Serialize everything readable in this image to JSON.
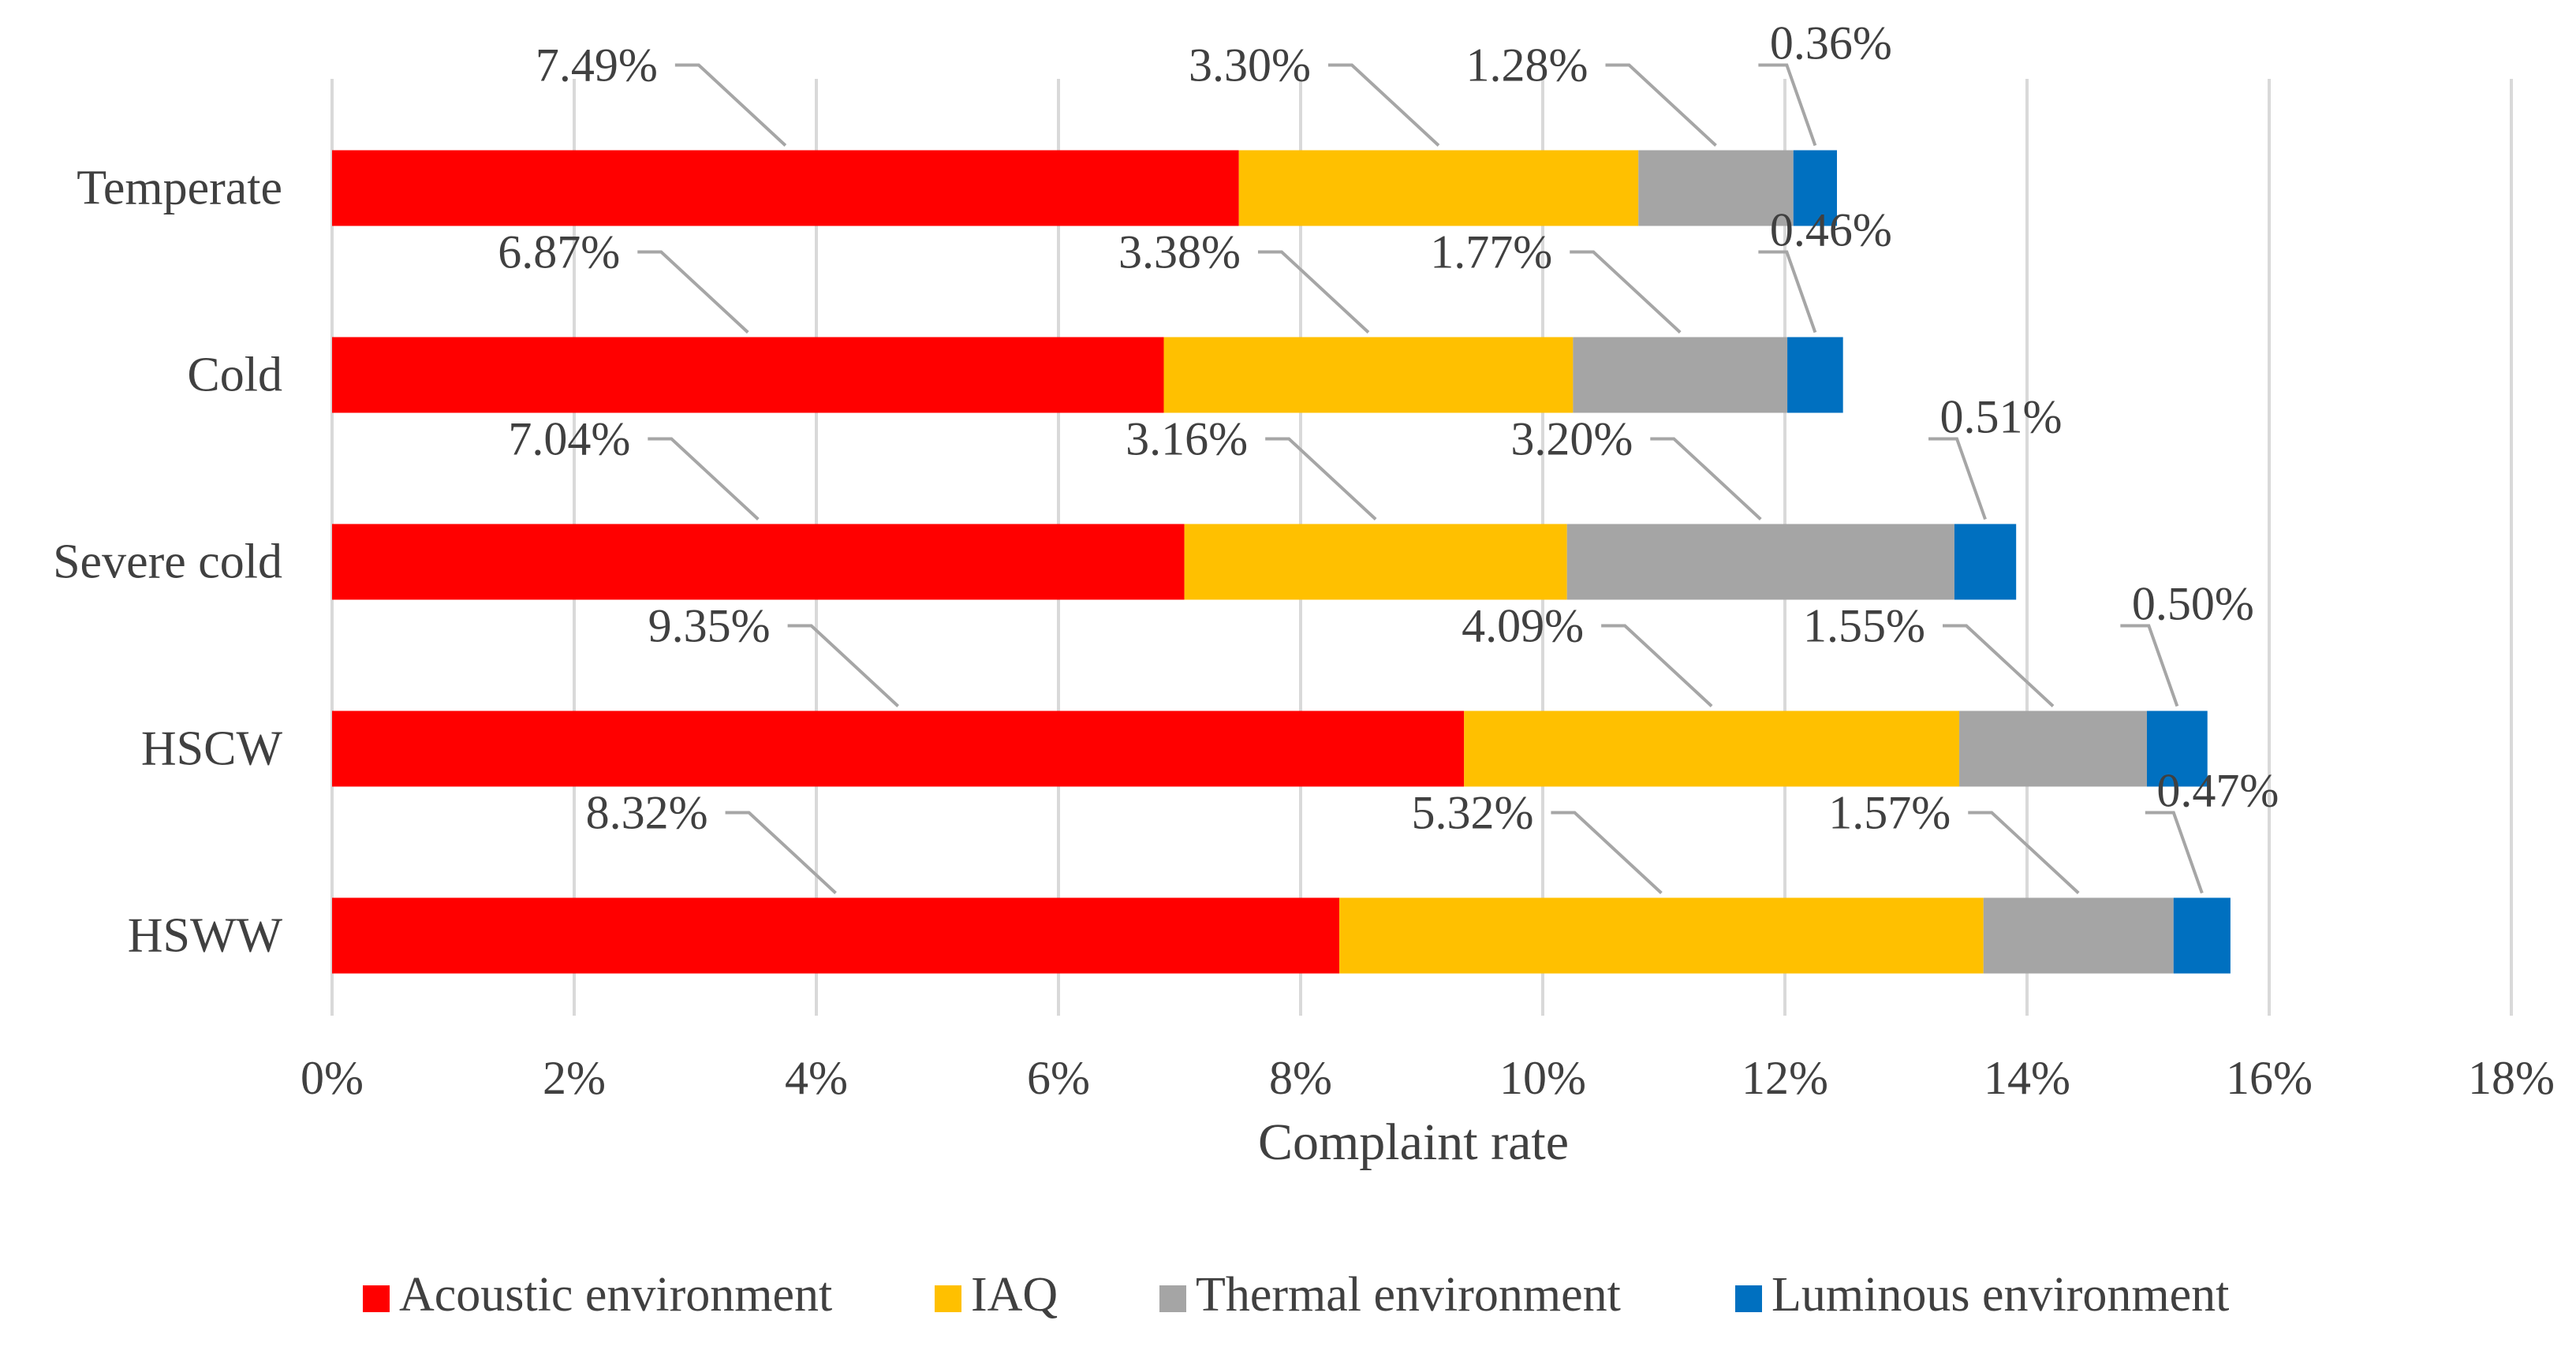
{
  "chart_data": {
    "type": "bar",
    "orientation": "horizontal",
    "stacked": true,
    "categories": [
      "Temperate",
      "Cold",
      "Severe cold",
      "HSCW",
      "HSWW"
    ],
    "series": [
      {
        "name": "Acoustic environment",
        "color": "#ff0000",
        "values": [
          7.49,
          6.87,
          7.04,
          9.35,
          8.32
        ],
        "labels": [
          "7.49%",
          "6.87%",
          "7.04%",
          "9.35%",
          "8.32%"
        ]
      },
      {
        "name": "IAQ",
        "color": "#ffc000",
        "values": [
          3.3,
          3.38,
          3.16,
          4.09,
          5.32
        ],
        "labels": [
          "3.30%",
          "3.38%",
          "3.16%",
          "4.09%",
          "5.32%"
        ]
      },
      {
        "name": "Thermal environment",
        "color": "#a5a5a5",
        "values": [
          1.28,
          1.77,
          3.2,
          1.55,
          1.57
        ],
        "labels": [
          "1.28%",
          "1.77%",
          "3.20%",
          "1.55%",
          "1.57%"
        ]
      },
      {
        "name": "Luminous environment",
        "color": "#0070c0",
        "values": [
          0.36,
          0.46,
          0.51,
          0.5,
          0.47
        ],
        "labels": [
          "0.36%",
          "0.46%",
          "0.51%",
          "0.50%",
          "0.47%"
        ]
      }
    ],
    "xlim": [
      0,
      18
    ],
    "xticks": [
      0,
      2,
      4,
      6,
      8,
      10,
      12,
      14,
      16,
      18
    ],
    "xtick_labels": [
      "0%",
      "2%",
      "4%",
      "6%",
      "8%",
      "10%",
      "12%",
      "14%",
      "16%",
      "18%"
    ],
    "xlabel": "Complaint rate",
    "ylabel": "",
    "title": "",
    "grid": "vertical",
    "legend_position": "bottom"
  }
}
